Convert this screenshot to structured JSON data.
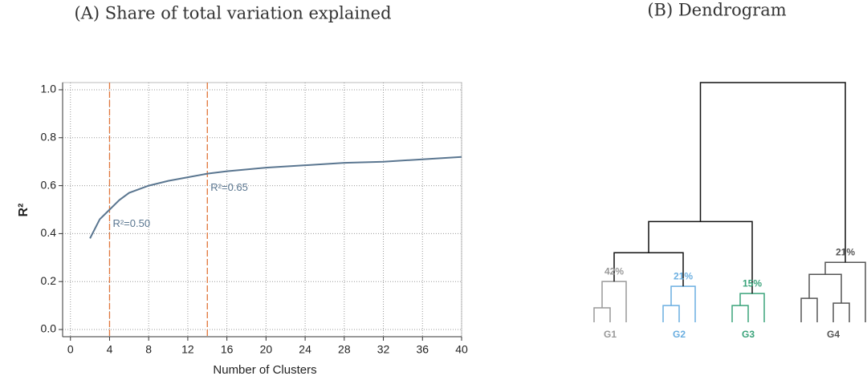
{
  "chart_data": [
    {
      "type": "line",
      "title": "(A) Share of total variation explained",
      "x_label": "Number of Clusters",
      "y_label": "R²",
      "x": [
        2,
        3,
        4,
        5,
        6,
        7,
        8,
        10,
        12,
        14,
        16,
        20,
        24,
        28,
        32,
        36,
        40
      ],
      "series": [
        {
          "color": "#5a7690",
          "values": [
            0.38,
            0.46,
            0.5,
            0.54,
            0.57,
            0.585,
            0.6,
            0.62,
            0.635,
            0.65,
            0.66,
            0.675,
            0.685,
            0.695,
            0.7,
            0.71,
            0.72
          ]
        }
      ],
      "vlines": [
        {
          "x": 4,
          "label": "R²=0.50"
        },
        {
          "x": 14,
          "label": "R²=0.65"
        }
      ],
      "vline_color": "#e0763a",
      "xlim": [
        -0.8,
        40
      ],
      "ylim": [
        -0.03,
        1.03
      ],
      "xticks": [
        0,
        4,
        8,
        12,
        16,
        20,
        24,
        28,
        32,
        36,
        40
      ],
      "yticks": [
        {
          "value": 0,
          "label": "0.0"
        },
        0.2,
        0.4,
        0.6,
        0.8,
        {
          "value": 1,
          "label": "1.0"
        }
      ],
      "grid": true
    },
    {
      "type": "dendrogram",
      "title": "(B) Dendrogram",
      "link_color": "#111111",
      "groups": [
        {
          "label": "G1",
          "share": "42%",
          "color": "#999999",
          "leaves": [
            0,
            2
          ],
          "node": 15
        },
        {
          "label": "G2",
          "share": "21%",
          "color": "#6aaee0",
          "leaves": [
            3,
            5
          ],
          "node": 17
        },
        {
          "label": "G3",
          "share": "15%",
          "color": "#3aa37a",
          "leaves": [
            6,
            8
          ],
          "node": 19
        },
        {
          "label": "G4",
          "share": "21%",
          "color": "#555555",
          "leaves": [
            9,
            13
          ],
          "node": 23
        }
      ],
      "leaf_count": 14,
      "merges": [
        {
          "children": [
            0,
            1
          ],
          "height": 0.06
        },
        {
          "children": [
            14,
            2
          ],
          "height": 0.17
        },
        {
          "children": [
            3,
            4
          ],
          "height": 0.07
        },
        {
          "children": [
            16,
            5
          ],
          "height": 0.15
        },
        {
          "children": [
            6,
            7
          ],
          "height": 0.07
        },
        {
          "children": [
            18,
            8
          ],
          "height": 0.12
        },
        {
          "children": [
            9,
            10
          ],
          "height": 0.1
        },
        {
          "children": [
            11,
            12
          ],
          "height": 0.08
        },
        {
          "children": [
            20,
            21
          ],
          "height": 0.2
        },
        {
          "children": [
            22,
            13
          ],
          "height": 0.25
        },
        {
          "children": [
            15,
            17
          ],
          "height": 0.29
        },
        {
          "children": [
            24,
            19
          ],
          "height": 0.42
        },
        {
          "children": [
            25,
            23
          ],
          "height": 1.0
        }
      ]
    }
  ]
}
